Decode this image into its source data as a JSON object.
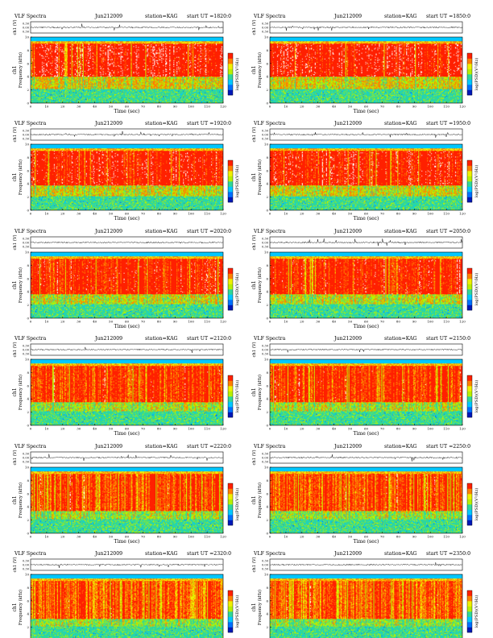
{
  "colors": {
    "spectrogram_scale": [
      "#0018b8",
      "#0070ff",
      "#00c8ff",
      "#30d898",
      "#b8f000",
      "#f0f000",
      "#ff8000",
      "#ff2000",
      "#ffffff"
    ],
    "trace": "#000000"
  },
  "common": {
    "header_left": "VLF Spectra",
    "station": "station=KAG",
    "xlabel": "Time  (sec)",
    "ylabel_top": "ch1 (V)",
    "ylabel_spec": "Frequency  (kHz)",
    "channel_label": "ch1",
    "colorbar_label": "log(PSD)(V²/Hz)",
    "top_ticks": [
      "0.30",
      "0.00",
      "0.30"
    ],
    "freq_ticks": [
      "0",
      "2",
      "4",
      "6",
      "8",
      "10"
    ],
    "time_ticks": [
      "0",
      "10",
      "20",
      "30",
      "40",
      "50",
      "60",
      "70",
      "80",
      "90",
      "100",
      "110",
      "120"
    ]
  },
  "chart_data": [
    {
      "type": "heatmap",
      "panel": "top-left-1",
      "date": "Jun212009",
      "station": "station=KAG",
      "start_ut": "start  UT  =1820:0",
      "xlabel": "Time  (sec)",
      "ylabel": "Frequency  (kHz)",
      "xlim": [
        0,
        120
      ],
      "ylim": [
        0,
        10
      ],
      "colorbar": "log(PSD)(V²/Hz)"
    },
    {
      "type": "heatmap",
      "panel": "top-right-1",
      "date": "Jun212009",
      "station": "station=KAG",
      "start_ut": "start  UT  =1850:0",
      "xlabel": "Time  (sec)",
      "ylabel": "Frequency  (kHz)",
      "xlim": [
        0,
        120
      ],
      "ylim": [
        0,
        10
      ],
      "colorbar": "log(PSD)(V²/Hz)"
    },
    {
      "type": "heatmap",
      "panel": "left-2",
      "date": "Jun212009",
      "station": "station=KAG",
      "start_ut": "start  UT  =1920:0",
      "xlabel": "Time  (sec)",
      "ylabel": "Frequency  (kHz)",
      "xlim": [
        0,
        120
      ],
      "ylim": [
        0,
        10
      ],
      "colorbar": "log(PSD)(V²/Hz)"
    },
    {
      "type": "heatmap",
      "panel": "right-2",
      "date": "Jun212009",
      "station": "station=KAG",
      "start_ut": "start  UT  =1950:0",
      "xlabel": "Time  (sec)",
      "ylabel": "Frequency  (kHz)",
      "xlim": [
        0,
        120
      ],
      "ylim": [
        0,
        10
      ],
      "colorbar": "log(PSD)(V²/Hz)"
    },
    {
      "type": "heatmap",
      "panel": "left-3",
      "date": "Jun212009",
      "station": "station=KAG",
      "start_ut": "start  UT  =2020:0",
      "xlabel": "Time  (sec)",
      "ylabel": "Frequency  (kHz)",
      "xlim": [
        0,
        120
      ],
      "ylim": [
        0,
        10
      ],
      "colorbar": "log(PSD)(V²/Hz)"
    },
    {
      "type": "heatmap",
      "panel": "right-3",
      "date": "Jun212009",
      "station": "station=KAG",
      "start_ut": "start  UT  =2050:0",
      "xlabel": "Time  (sec)",
      "ylabel": "Frequency  (kHz)",
      "xlim": [
        0,
        120
      ],
      "ylim": [
        0,
        10
      ],
      "colorbar": "log(PSD)(V²/Hz)"
    },
    {
      "type": "heatmap",
      "panel": "left-4",
      "date": "Jun212009",
      "station": "station=KAG",
      "start_ut": "start  UT  =2120:0",
      "xlabel": "Time  (sec)",
      "ylabel": "Frequency  (kHz)",
      "xlim": [
        0,
        120
      ],
      "ylim": [
        0,
        10
      ],
      "colorbar": "log(PSD)(V²/Hz)"
    },
    {
      "type": "heatmap",
      "panel": "right-4",
      "date": "Jun212009",
      "station": "station=KAG",
      "start_ut": "start  UT  =2150:0",
      "xlabel": "Time  (sec)",
      "ylabel": "Frequency  (kHz)",
      "xlim": [
        0,
        120
      ],
      "ylim": [
        0,
        10
      ],
      "colorbar": "log(PSD)(V²/Hz)"
    },
    {
      "type": "heatmap",
      "panel": "left-5",
      "date": "Jun212009",
      "station": "station=KAG",
      "start_ut": "start  UT  =2220:0",
      "xlabel": "Time  (sec)",
      "ylabel": "Frequency  (kHz)",
      "xlim": [
        0,
        120
      ],
      "ylim": [
        0,
        10
      ],
      "colorbar": "log(PSD)(V²/Hz)"
    },
    {
      "type": "heatmap",
      "panel": "right-5",
      "date": "Jun212009",
      "station": "station=KAG",
      "start_ut": "start  UT  =2250:0",
      "xlabel": "Time  (sec)",
      "ylabel": "Frequency  (kHz)",
      "xlim": [
        0,
        120
      ],
      "ylim": [
        0,
        10
      ],
      "colorbar": "log(PSD)(V²/Hz)"
    },
    {
      "type": "heatmap",
      "panel": "left-6",
      "date": "Jun212009",
      "station": "station=KAG",
      "start_ut": "start  UT  =2320:0",
      "xlabel": "Time  (sec)",
      "ylabel": "Frequency  (kHz)",
      "xlim": [
        0,
        120
      ],
      "ylim": [
        0,
        10
      ],
      "colorbar": "log(PSD)(V²/Hz)"
    },
    {
      "type": "heatmap",
      "panel": "right-6",
      "date": "Jun212009",
      "station": "station=KAG",
      "start_ut": "start  UT  =2350:0",
      "xlabel": "Time  (sec)",
      "ylabel": "Frequency  (kHz)",
      "xlim": [
        0,
        120
      ],
      "ylim": [
        0,
        10
      ],
      "colorbar": "log(PSD)(V²/Hz)"
    }
  ]
}
